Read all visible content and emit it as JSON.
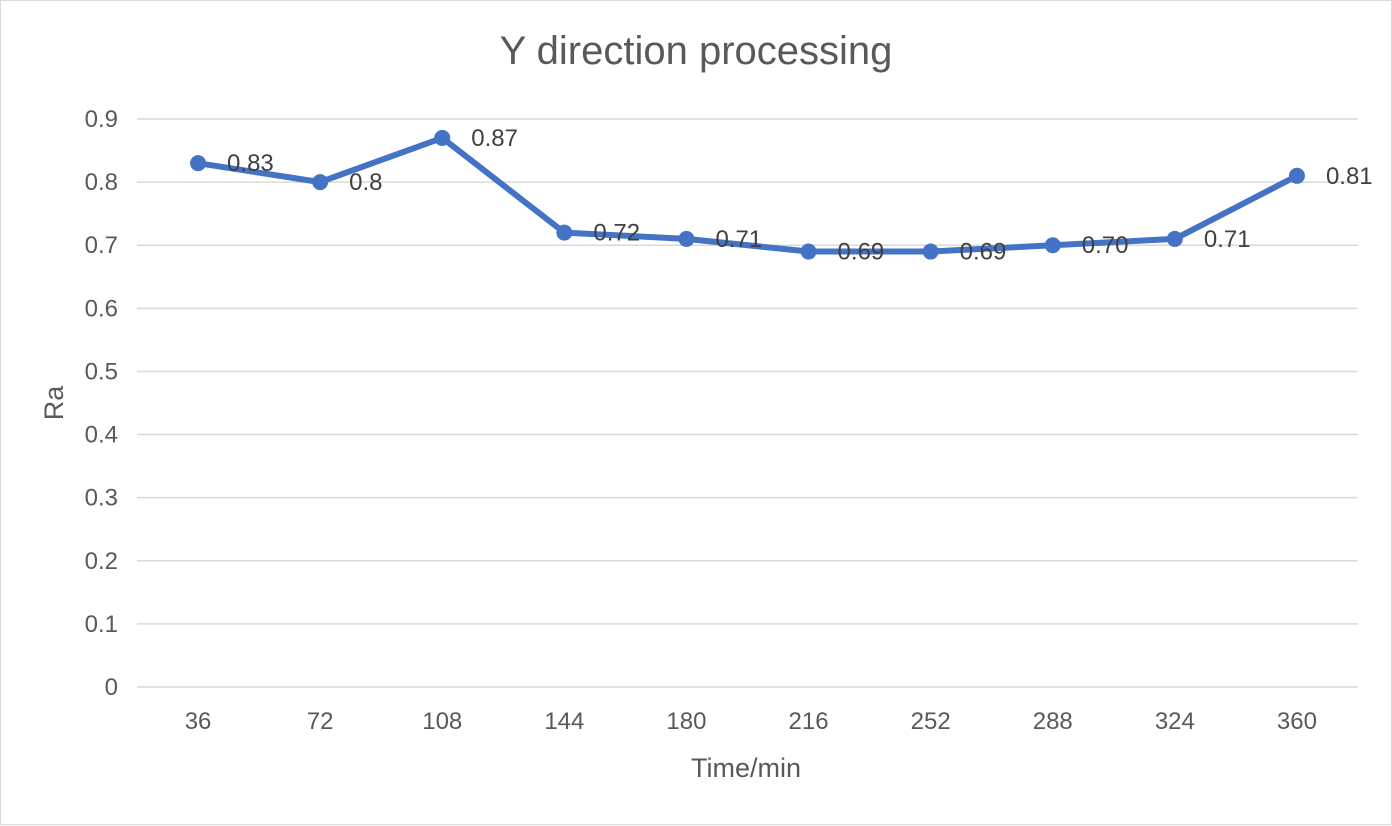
{
  "chart_data": {
    "type": "line",
    "title": "Y direction processing",
    "xlabel": "Time/min",
    "ylabel": "Ra",
    "categories": [
      "36",
      "72",
      "108",
      "144",
      "180",
      "216",
      "252",
      "288",
      "324",
      "360"
    ],
    "series": [
      {
        "values": [
          0.83,
          0.8,
          0.87,
          0.72,
          0.71,
          0.69,
          0.69,
          0.7,
          0.71,
          0.81
        ],
        "labels": [
          "0.83",
          "0.8",
          "0.87",
          "0.72",
          "0.71",
          "0.69",
          "0.69",
          "0.70",
          "0.71",
          "0.81"
        ]
      }
    ],
    "ylim": [
      0,
      0.9
    ],
    "yticks": [
      "0",
      "0.1",
      "0.2",
      "0.3",
      "0.4",
      "0.5",
      "0.6",
      "0.7",
      "0.8",
      "0.9"
    ],
    "grid": true,
    "legend": "none",
    "colors": {
      "line": "#4472C4",
      "grid": "#D9D9D9",
      "text": "#595959"
    }
  }
}
